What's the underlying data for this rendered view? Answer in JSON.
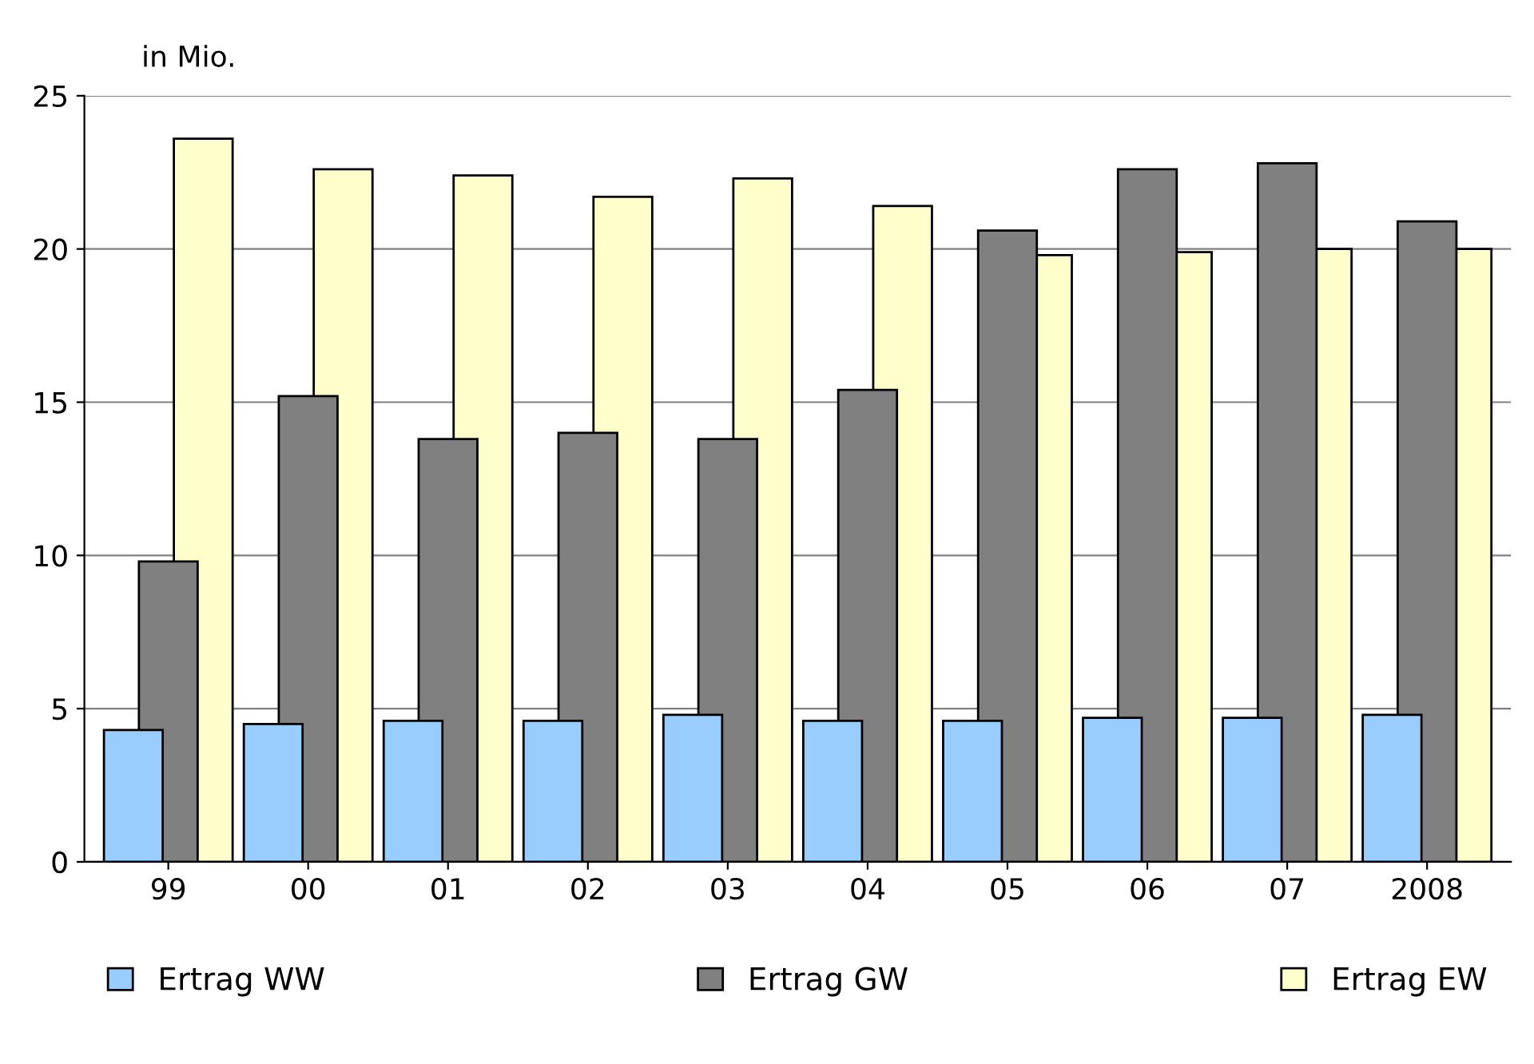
{
  "chart_data": {
    "type": "bar",
    "ylabel": "in Mio.",
    "categories": [
      "99",
      "00",
      "01",
      "02",
      "03",
      "04",
      "05",
      "06",
      "07",
      "2008"
    ],
    "series": [
      {
        "name": "Ertrag WW",
        "color": "#99ccff",
        "values": [
          4.3,
          4.5,
          4.6,
          4.6,
          4.8,
          4.6,
          4.6,
          4.7,
          4.7,
          4.8
        ]
      },
      {
        "name": "Ertrag GW",
        "color": "#808080",
        "values": [
          9.8,
          15.2,
          13.8,
          14.0,
          13.8,
          15.4,
          20.6,
          22.6,
          22.8,
          20.9
        ]
      },
      {
        "name": "Ertrag EW",
        "color": "#ffffcc",
        "values": [
          23.6,
          22.6,
          22.4,
          21.7,
          22.3,
          21.4,
          19.8,
          19.9,
          20.0,
          20.0
        ]
      }
    ],
    "ylim": [
      0,
      25
    ],
    "yticks": [
      0,
      5,
      10,
      15,
      20,
      25
    ],
    "grid": "y",
    "legend": "bottom"
  }
}
